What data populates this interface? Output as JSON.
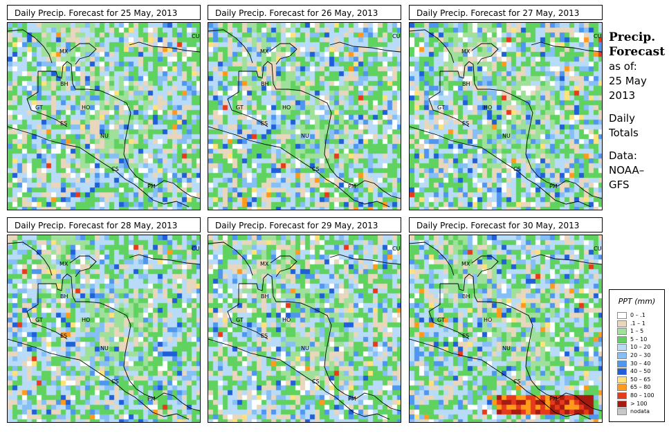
{
  "panels": [
    {
      "title": "Daily Precip. Forecast for  25 May, 2013"
    },
    {
      "title": "Daily Precip. Forecast for  26 May, 2013"
    },
    {
      "title": "Daily Precip. Forecast for  27 May, 2013"
    },
    {
      "title": "Daily Precip. Forecast for  28 May, 2013"
    },
    {
      "title": "Daily Precip. Forecast for  29 May, 2013"
    },
    {
      "title": "Daily Precip. Forecast for  30 May, 2013"
    }
  ],
  "country_labels": [
    "CU",
    "MX",
    "BH",
    "GT",
    "HO",
    "ES",
    "NU",
    "CS",
    "PM"
  ],
  "side": {
    "title_line1": "Precip.",
    "title_line2": "Forecast",
    "asof": "as of:",
    "date1": "25 May",
    "date2": "2013",
    "daily": "Daily",
    "totals": "Totals",
    "data_label": "Data:",
    "source1": "NOAA–",
    "source2": "GFS"
  },
  "legend": {
    "title": "PPT (mm)",
    "items": [
      {
        "label": "0 – .1",
        "color": "#ffffff"
      },
      {
        "label": ".1 – 1",
        "color": "#e8d6bd"
      },
      {
        "label": "1 – 5",
        "color": "#9fe09a"
      },
      {
        "label": "5 – 10",
        "color": "#5fd25f"
      },
      {
        "label": "10 – 20",
        "color": "#b8dcf8"
      },
      {
        "label": "20 – 30",
        "color": "#86bff5"
      },
      {
        "label": "30 – 40",
        "color": "#4f96ef"
      },
      {
        "label": "40 – 50",
        "color": "#1f5fd8"
      },
      {
        "label": "50 – 65",
        "color": "#ffe27a"
      },
      {
        "label": "65 – 80",
        "color": "#ff9a1a"
      },
      {
        "label": "80 – 100",
        "color": "#e63a1a"
      },
      {
        "label": "> 100",
        "color": "#a61a10"
      },
      {
        "label": "nodata",
        "color": "#c8c8c8"
      }
    ]
  }
}
